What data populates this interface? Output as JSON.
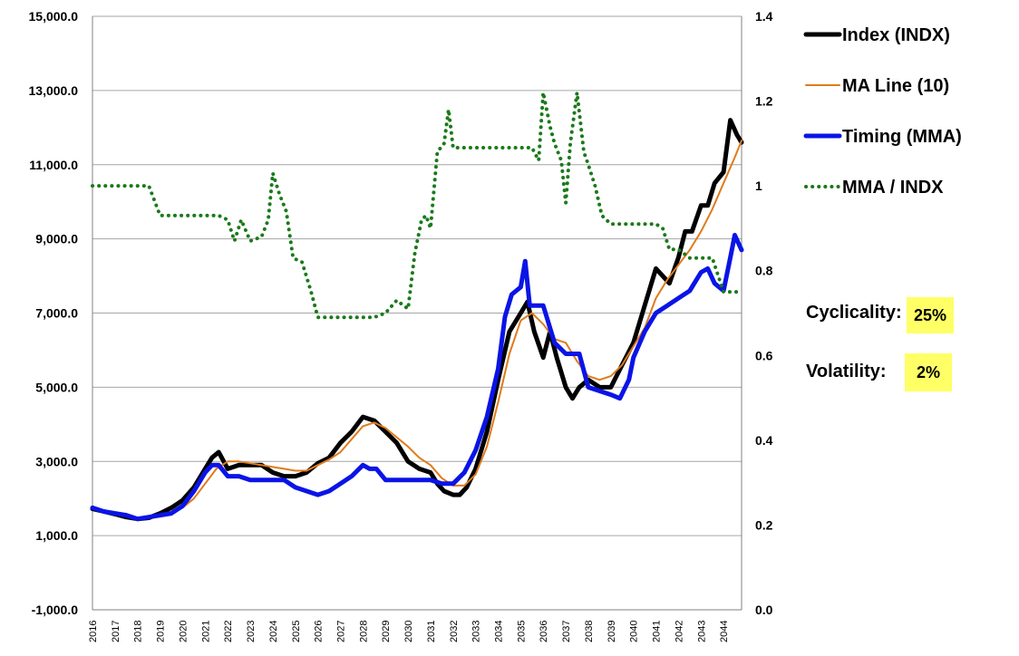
{
  "chart_data": {
    "type": "line",
    "title": "",
    "xlabel": "",
    "ylabel": "",
    "x_ticks": [
      "2016",
      "2017",
      "2018",
      "2019",
      "2020",
      "2021",
      "2022",
      "2023",
      "2024",
      "2025",
      "2026",
      "2027",
      "2028",
      "2029",
      "2030",
      "2031",
      "2032",
      "2033",
      "2034",
      "2035",
      "2036",
      "2037",
      "2038",
      "2039",
      "2040",
      "2041",
      "2042",
      "2043",
      "2044"
    ],
    "x_range": [
      2016,
      2044.8
    ],
    "y_left": {
      "range": [
        -1000,
        15000
      ],
      "ticks": [
        "-1,000.0",
        "1,000.0",
        "3,000.0",
        "5,000.0",
        "7,000.0",
        "9,000.0",
        "11,000.0",
        "13,000.0",
        "15,000.0"
      ],
      "tick_values": [
        -1000,
        1000,
        3000,
        5000,
        7000,
        9000,
        11000,
        13000,
        15000
      ]
    },
    "y_right": {
      "range": [
        0,
        1.4
      ],
      "ticks": [
        "0.0",
        "0.2",
        "0.4",
        "0.6",
        "0.8",
        "1",
        "1.2",
        "1.4"
      ],
      "tick_values": [
        0,
        0.2,
        0.4,
        0.6,
        0.8,
        1.0,
        1.2,
        1.4
      ]
    },
    "grid": "horizontal",
    "legend_position": "right",
    "series": [
      {
        "name": "Index (INDX)",
        "color": "#000000",
        "axis": "left",
        "style": "solid-thick",
        "x": [
          2016,
          2016.5,
          2017,
          2017.5,
          2018,
          2018.5,
          2019,
          2019.5,
          2020,
          2020.5,
          2021,
          2021.3,
          2021.6,
          2022,
          2022.5,
          2023,
          2023.5,
          2024,
          2024.5,
          2025,
          2025.5,
          2026,
          2026.5,
          2027,
          2027.5,
          2028,
          2028.5,
          2029,
          2029.5,
          2030,
          2030.5,
          2031,
          2031.3,
          2031.6,
          2032,
          2032.3,
          2032.6,
          2033,
          2033.5,
          2034,
          2034.5,
          2035,
          2035.3,
          2035.6,
          2036,
          2036.3,
          2036.6,
          2037,
          2037.3,
          2037.6,
          2038,
          2038.5,
          2039,
          2039.5,
          2040,
          2040.5,
          2041,
          2041.3,
          2041.6,
          2042,
          2042.3,
          2042.6,
          2043,
          2043.3,
          2043.6,
          2044,
          2044.3,
          2044.6,
          2044.8
        ],
        "values": [
          1720,
          1650,
          1580,
          1500,
          1450,
          1480,
          1600,
          1750,
          1950,
          2300,
          2800,
          3100,
          3250,
          2800,
          2900,
          2900,
          2900,
          2700,
          2600,
          2600,
          2700,
          2950,
          3100,
          3500,
          3800,
          4200,
          4100,
          3800,
          3500,
          3000,
          2800,
          2700,
          2400,
          2200,
          2100,
          2100,
          2300,
          2800,
          3800,
          5200,
          6500,
          7000,
          7300,
          6500,
          5800,
          6500,
          5800,
          5000,
          4700,
          5000,
          5200,
          5000,
          5000,
          5600,
          6200,
          7200,
          8200,
          8000,
          7800,
          8500,
          9200,
          9200,
          9900,
          9900,
          10500,
          10800,
          12200,
          11800,
          11600
        ]
      },
      {
        "name": "MA Line (10)",
        "color": "#e07b1a",
        "axis": "left",
        "style": "solid-thin",
        "x": [
          2019.5,
          2020,
          2020.5,
          2021,
          2021.5,
          2022,
          2022.5,
          2023,
          2023.5,
          2024,
          2024.5,
          2025,
          2025.5,
          2026,
          2026.5,
          2027,
          2027.5,
          2028,
          2028.5,
          2029,
          2029.5,
          2030,
          2030.5,
          2031,
          2031.5,
          2032,
          2032.5,
          2033,
          2033.5,
          2034,
          2034.5,
          2035,
          2035.5,
          2036,
          2036.5,
          2037,
          2037.5,
          2038,
          2038.5,
          2039,
          2039.5,
          2040,
          2040.5,
          2041,
          2041.5,
          2042,
          2042.5,
          2043,
          2043.5,
          2044,
          2044.5,
          2044.8
        ],
        "values": [
          1600,
          1750,
          2000,
          2400,
          2800,
          3000,
          3000,
          2950,
          2900,
          2850,
          2800,
          2750,
          2750,
          2900,
          3050,
          3250,
          3600,
          3950,
          4050,
          3900,
          3650,
          3400,
          3100,
          2900,
          2550,
          2350,
          2350,
          2650,
          3400,
          4600,
          5900,
          6800,
          7000,
          6700,
          6300,
          6200,
          5700,
          5300,
          5200,
          5300,
          5600,
          6100,
          6600,
          7400,
          7900,
          8300,
          8700,
          9200,
          9800,
          10500,
          11200,
          11650
        ]
      },
      {
        "name": "Timing (MMA)",
        "color": "#0a14e6",
        "axis": "left",
        "style": "solid-thick",
        "x": [
          2016,
          2016.5,
          2017,
          2017.5,
          2018,
          2018.5,
          2019,
          2019.5,
          2020,
          2020.5,
          2021,
          2021.3,
          2021.6,
          2022,
          2022.5,
          2023,
          2023.5,
          2024,
          2024.5,
          2025,
          2025.5,
          2026,
          2026.5,
          2027,
          2027.5,
          2028,
          2028.3,
          2028.6,
          2029,
          2029.5,
          2030,
          2030.5,
          2031,
          2031.5,
          2032,
          2032.5,
          2033,
          2033.5,
          2034,
          2034.3,
          2034.6,
          2035,
          2035.2,
          2035.4,
          2035.7,
          2036,
          2036.5,
          2037,
          2037.3,
          2037.6,
          2038,
          2038.5,
          2039,
          2039.4,
          2039.8,
          2040,
          2040.5,
          2041,
          2041.5,
          2042,
          2042.5,
          2043,
          2043.3,
          2043.6,
          2044,
          2044.3,
          2044.5,
          2044.8
        ],
        "values": [
          1750,
          1650,
          1600,
          1550,
          1450,
          1500,
          1550,
          1600,
          1800,
          2200,
          2700,
          2900,
          2900,
          2600,
          2600,
          2500,
          2500,
          2500,
          2500,
          2300,
          2200,
          2100,
          2200,
          2400,
          2600,
          2900,
          2800,
          2800,
          2500,
          2500,
          2500,
          2500,
          2500,
          2400,
          2400,
          2700,
          3300,
          4200,
          5500,
          6900,
          7500,
          7700,
          8400,
          7200,
          7200,
          7200,
          6200,
          5900,
          5900,
          5900,
          5000,
          4900,
          4800,
          4700,
          5200,
          5800,
          6500,
          7000,
          7200,
          7400,
          7600,
          8100,
          8200,
          7800,
          7600,
          8500,
          9100,
          8700
        ]
      },
      {
        "name": "MMA / INDX",
        "color": "#1a7a1a",
        "axis": "right",
        "style": "dotted",
        "x": [
          2016,
          2017,
          2018,
          2018.5,
          2019,
          2020,
          2021,
          2021.6,
          2022,
          2022.3,
          2022.6,
          2023,
          2023.5,
          2023.8,
          2024,
          2024.3,
          2024.6,
          2024.9,
          2025.3,
          2025.7,
          2026,
          2027,
          2028,
          2028.5,
          2029,
          2029.5,
          2030,
          2030.3,
          2030.6,
          2030.8,
          2031,
          2031.3,
          2031.6,
          2031.8,
          2032,
          2033,
          2034,
          2034.5,
          2035,
          2035.5,
          2035.8,
          2036,
          2036.3,
          2036.5,
          2036.8,
          2037,
          2037.2,
          2037.5,
          2037.8,
          2038,
          2038.3,
          2038.6,
          2039,
          2040,
          2041,
          2041.3,
          2041.6,
          2042,
          2042.5,
          2043,
          2043.5,
          2044,
          2044.5,
          2044.8
        ],
        "values": [
          1.0,
          1.0,
          1.0,
          1.0,
          0.93,
          0.93,
          0.93,
          0.93,
          0.92,
          0.87,
          0.92,
          0.87,
          0.88,
          0.92,
          1.03,
          0.98,
          0.94,
          0.83,
          0.82,
          0.75,
          0.69,
          0.69,
          0.69,
          0.69,
          0.7,
          0.73,
          0.71,
          0.84,
          0.92,
          0.93,
          0.9,
          1.08,
          1.1,
          1.18,
          1.09,
          1.09,
          1.09,
          1.09,
          1.09,
          1.09,
          1.06,
          1.22,
          1.14,
          1.1,
          1.06,
          0.96,
          1.1,
          1.22,
          1.08,
          1.05,
          1.0,
          0.93,
          0.91,
          0.91,
          0.91,
          0.9,
          0.85,
          0.85,
          0.83,
          0.83,
          0.83,
          0.75,
          0.75,
          0.75
        ]
      }
    ]
  },
  "stats": {
    "cyclicality_label": "Cyclicality:",
    "cyclicality_value": "25%",
    "volatility_label": "Volatility:",
    "volatility_value": "2%"
  }
}
